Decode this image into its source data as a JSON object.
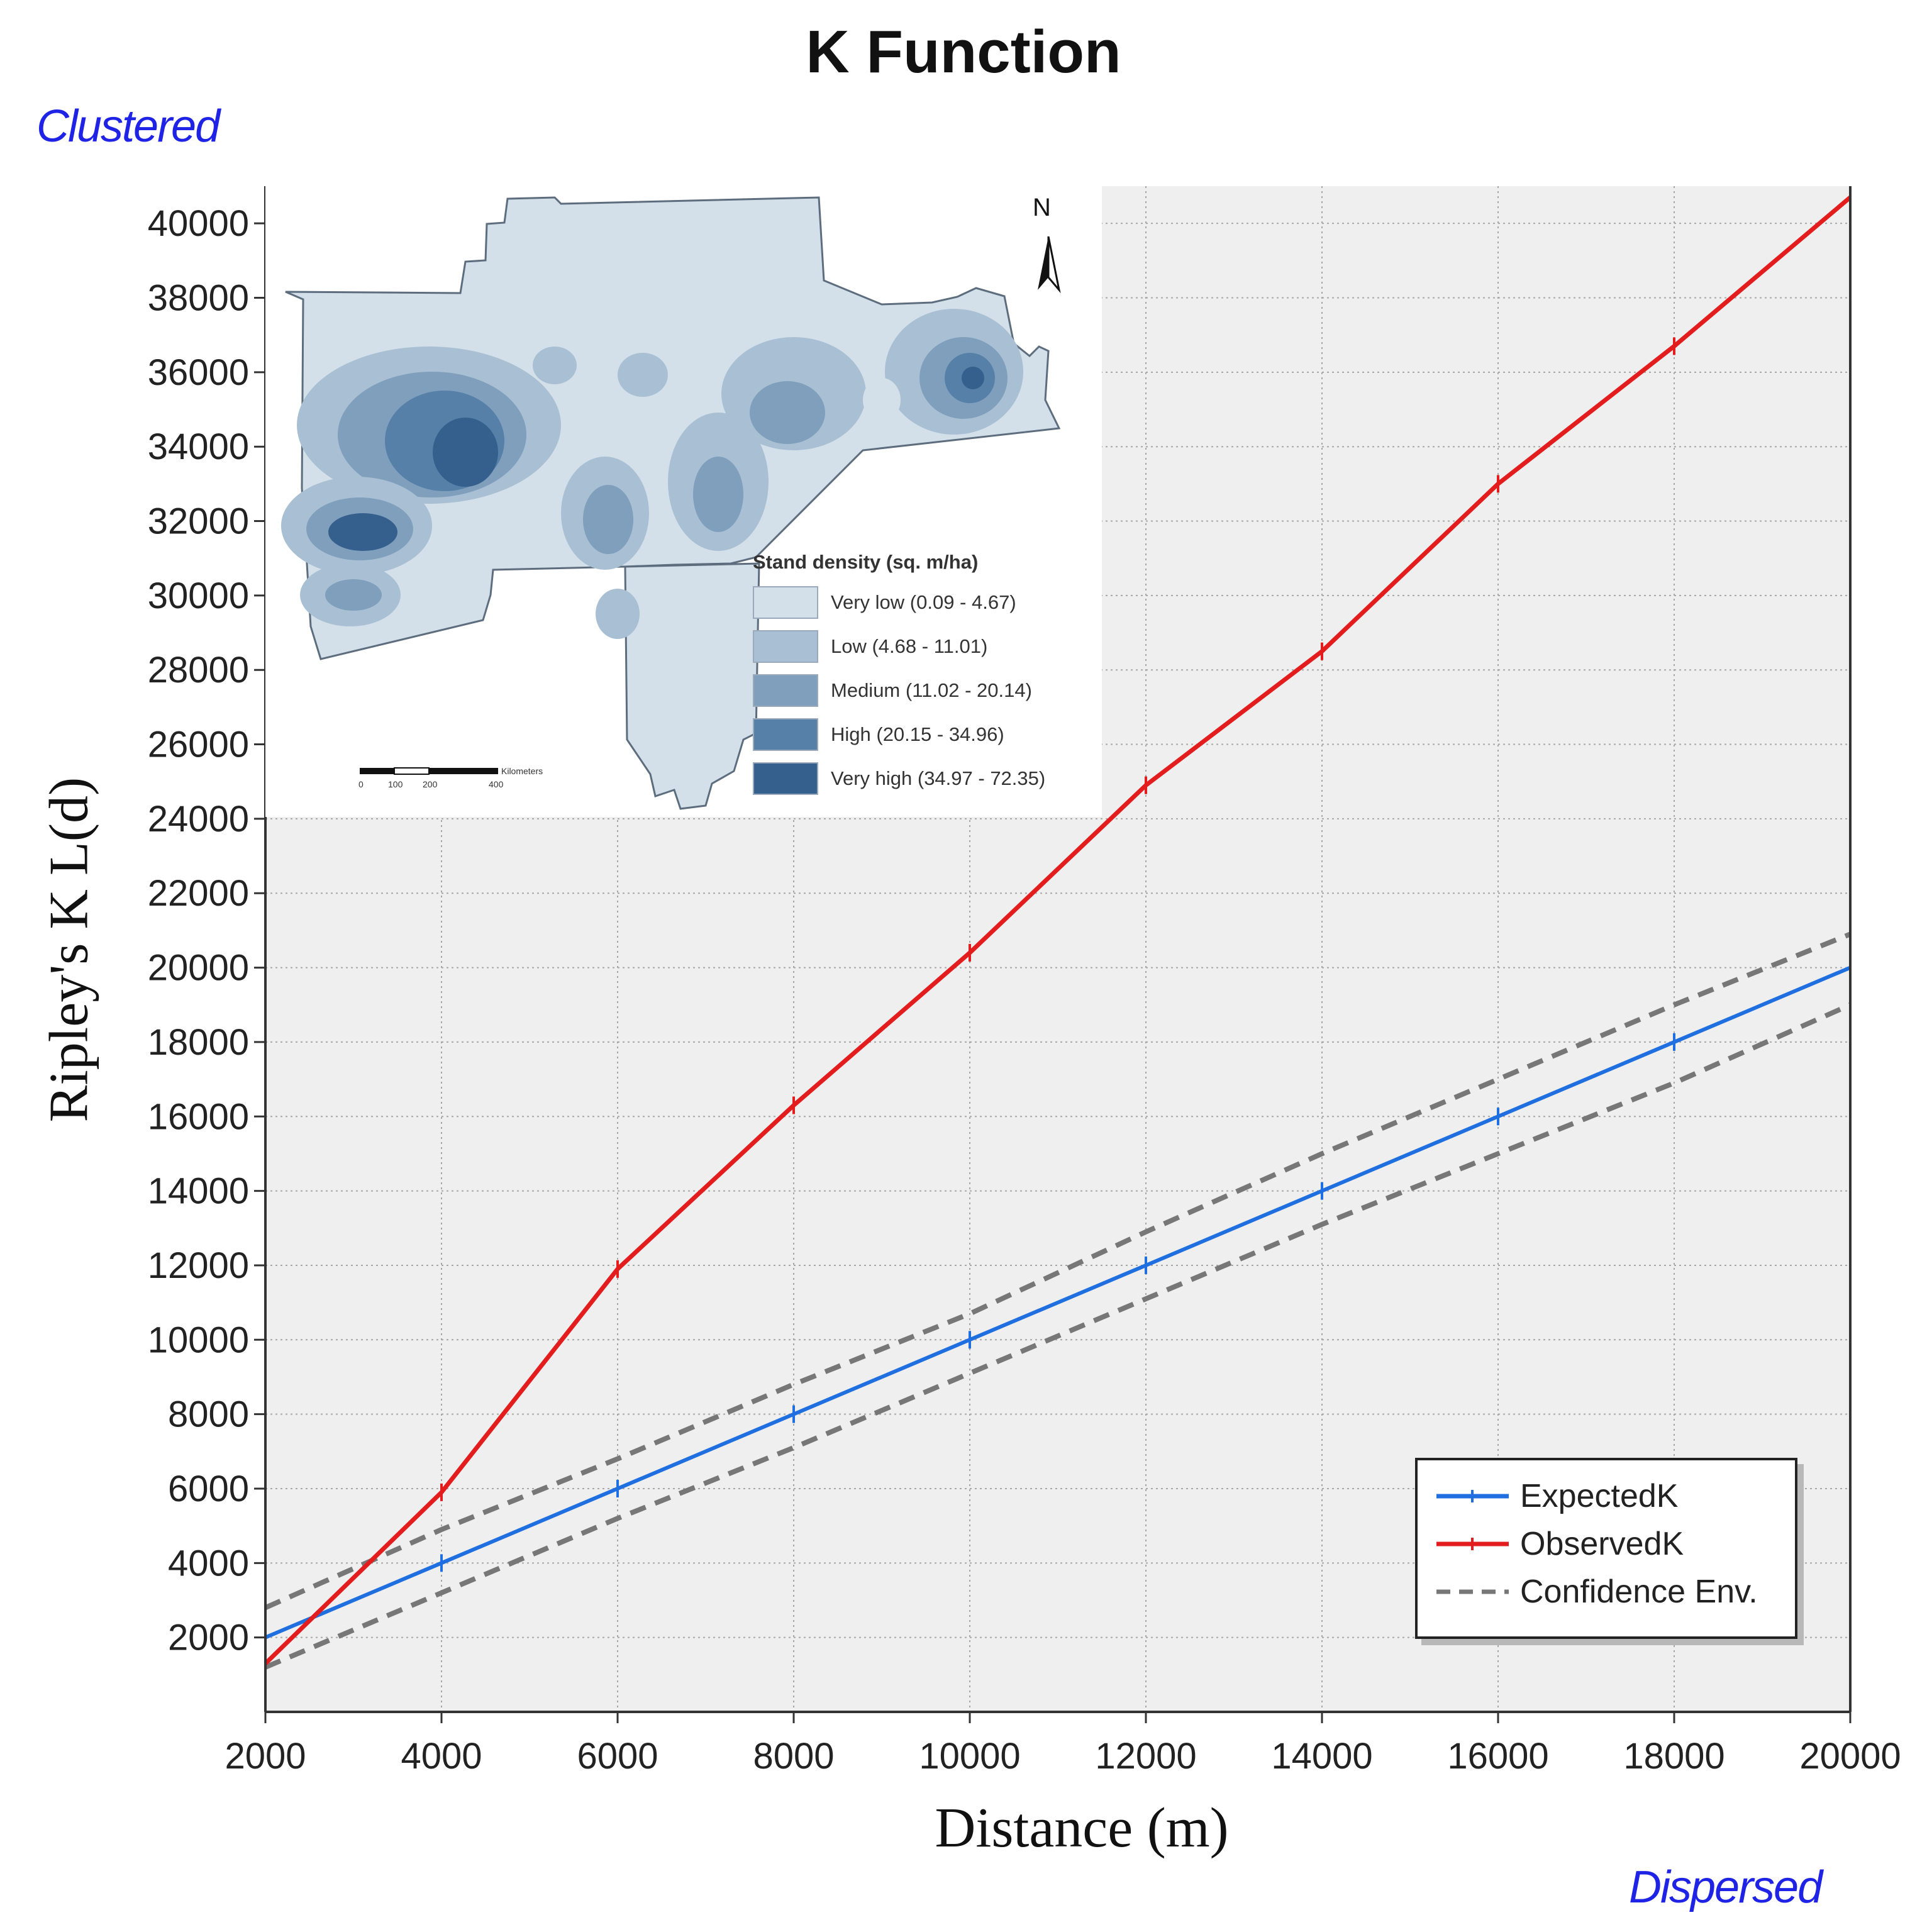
{
  "title": "K Function",
  "annotations": {
    "top_left": "Clustered",
    "bottom_right": "Dispersed"
  },
  "colors": {
    "expected": "#1f6fe0",
    "observed": "#e31d1d",
    "confidence": "#777777",
    "plot_bg": "#efefef",
    "corner_text": "#1f23e6"
  },
  "chart_data": {
    "type": "line",
    "title": "K Function",
    "xlabel": "Distance (m)",
    "ylabel": "Ripley's K L(d)",
    "xlim": [
      2000,
      20000
    ],
    "ylim": [
      0,
      41000
    ],
    "x_ticks": [
      2000,
      4000,
      6000,
      8000,
      10000,
      12000,
      14000,
      16000,
      18000,
      20000
    ],
    "y_ticks": [
      2000,
      4000,
      6000,
      8000,
      10000,
      12000,
      14000,
      16000,
      18000,
      20000,
      22000,
      24000,
      26000,
      28000,
      30000,
      32000,
      34000,
      36000,
      38000,
      40000
    ],
    "grid": true,
    "legend_position": "bottom-right",
    "x": [
      2000,
      4000,
      6000,
      8000,
      10000,
      12000,
      14000,
      16000,
      18000,
      20000
    ],
    "series": [
      {
        "name": "ExpectedK",
        "style": "solid",
        "values": [
          2000,
          4000,
          6000,
          8000,
          10000,
          12000,
          14000,
          16000,
          18000,
          20000
        ]
      },
      {
        "name": "ObservedK",
        "style": "solid",
        "values": [
          1300,
          5900,
          11900,
          16300,
          20400,
          24900,
          28500,
          33000,
          36700,
          40700
        ]
      },
      {
        "name": "Confidence Env.",
        "style": "dashed",
        "values": [
          2800,
          4900,
          6800,
          8800,
          10700,
          12900,
          15000,
          17000,
          19000,
          20900
        ]
      },
      {
        "name": "Confidence Env. (lower)",
        "style": "dashed",
        "values": [
          1200,
          3200,
          5200,
          7100,
          9100,
          11100,
          13100,
          15000,
          16900,
          19000
        ]
      }
    ]
  },
  "legend": {
    "items": [
      {
        "label": "ExpectedK",
        "color": "#1f6fe0",
        "style": "solid"
      },
      {
        "label": "ObservedK",
        "color": "#e31d1d",
        "style": "solid"
      },
      {
        "label": "Confidence Env.",
        "color": "#777777",
        "style": "dashed"
      }
    ]
  },
  "inset_map": {
    "north_label": "N",
    "legend_title": "Stand density (sq. m/ha)",
    "classes": [
      {
        "label": "Very low (0.09 - 4.67)",
        "color": "#d3e0e9"
      },
      {
        "label": "Low (4.68 - 11.01)",
        "color": "#a9bfd3"
      },
      {
        "label": "Medium (11.02 - 20.14)",
        "color": "#7f9fbd"
      },
      {
        "label": "High (20.15 - 34.96)",
        "color": "#5680a8"
      },
      {
        "label": "Very high (34.97 - 72.35)",
        "color": "#355f8c"
      }
    ],
    "scale": {
      "ticks": [
        "0",
        "100",
        "200",
        "400"
      ],
      "unit": "Kilometers"
    }
  }
}
